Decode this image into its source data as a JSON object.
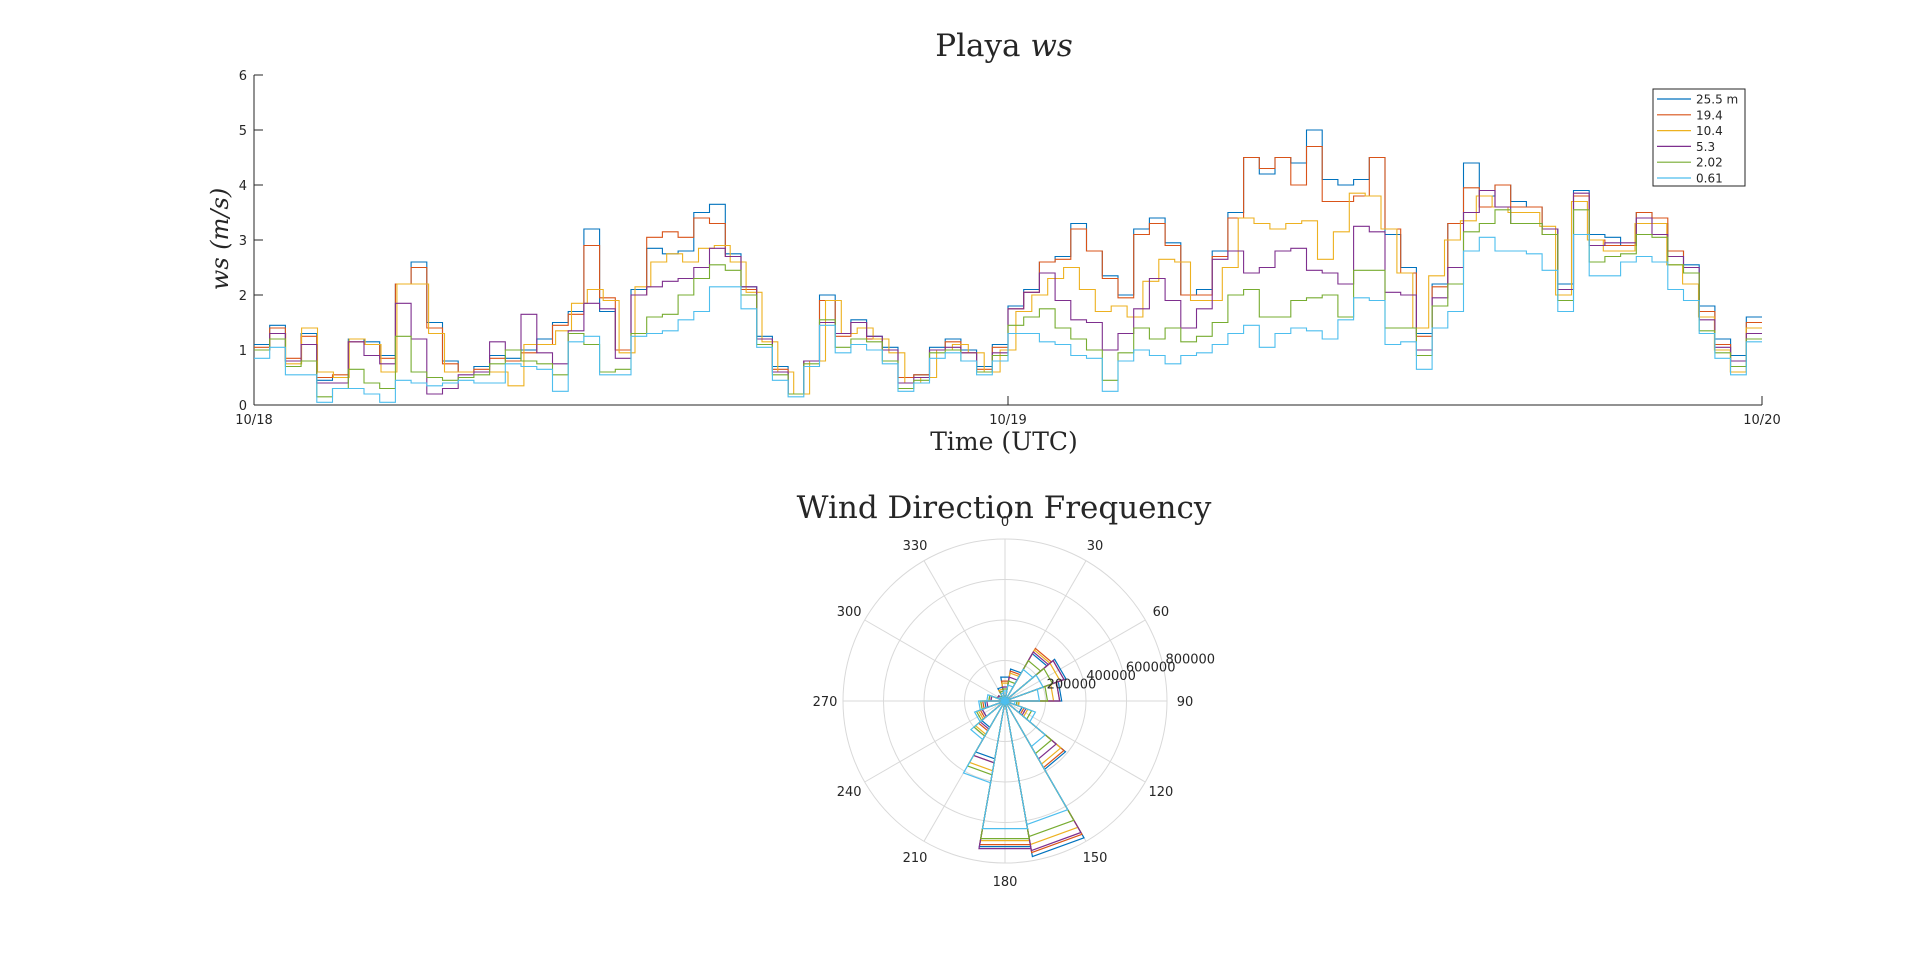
{
  "colors": {
    "s25_5": "#0072BD",
    "s19_4": "#D95319",
    "s10_4": "#EDB120",
    "s5_3": "#7E2F8E",
    "s2_02": "#77AC30",
    "s0_61": "#4DBEEE",
    "axis": "#262626",
    "polar_grid": "#d9d9d9"
  },
  "chart_data": [
    {
      "type": "line",
      "style": "stairs",
      "title_prefix": "Playa ",
      "title_italic": "ws",
      "ylabel": "ws (m/s)",
      "xlabel": "Time (UTC)",
      "xlim": [
        0,
        48
      ],
      "ylim": [
        0,
        6
      ],
      "yticks": [
        "0",
        "1",
        "2",
        "3",
        "4",
        "5",
        "6"
      ],
      "xticks": [
        {
          "x": 0,
          "label": "10/18"
        },
        {
          "x": 24,
          "label": "10/19"
        },
        {
          "x": 48,
          "label": "10/20"
        }
      ],
      "legend_position": "top-right",
      "grid": false,
      "series": [
        {
          "name": "25.5 m",
          "color_key": "s25_5",
          "values": [
            1.1,
            1.45,
            0.8,
            1.3,
            0.45,
            0.5,
            1.2,
            1.15,
            0.9,
            2.2,
            2.6,
            1.5,
            0.8,
            0.6,
            0.7,
            0.9,
            0.85,
            1.0,
            1.2,
            1.5,
            1.7,
            3.2,
            1.7,
            1.0,
            2.1,
            2.85,
            2.75,
            2.8,
            3.5,
            3.65,
            2.75,
            2.15,
            1.25,
            0.7,
            0.2,
            0.8,
            2.0,
            1.3,
            1.55,
            1.25,
            1.05,
            0.5,
            0.55,
            1.05,
            1.2,
            1.0,
            0.7,
            1.1,
            1.8,
            2.1,
            2.6,
            2.7,
            3.3,
            2.8,
            2.35,
            2.0,
            3.2,
            3.4,
            2.95,
            2.0,
            2.1,
            2.8,
            3.5,
            4.5,
            4.2,
            4.5,
            4.4,
            5.0,
            4.1,
            4.0,
            4.1,
            4.5,
            3.1,
            2.5,
            1.3,
            2.2,
            3.3,
            4.4,
            3.8,
            4.0,
            3.7,
            3.6,
            3.2,
            2.2,
            3.9,
            3.1,
            3.05,
            2.9,
            3.5,
            3.3,
            2.8,
            2.55,
            1.8,
            1.2,
            0.9,
            1.6
          ]
        },
        {
          "name": "19.4",
          "color_key": "s19_4",
          "values": [
            1.05,
            1.4,
            0.85,
            1.25,
            0.5,
            0.55,
            1.15,
            1.1,
            0.85,
            2.2,
            2.5,
            1.4,
            0.75,
            0.6,
            0.65,
            0.85,
            0.8,
            0.95,
            1.1,
            1.45,
            1.65,
            2.9,
            1.95,
            1.0,
            2.0,
            3.05,
            3.15,
            3.05,
            3.4,
            3.3,
            2.7,
            2.1,
            1.2,
            0.65,
            0.2,
            0.8,
            1.9,
            1.25,
            1.5,
            1.2,
            1.0,
            0.5,
            0.55,
            1.0,
            1.15,
            0.95,
            0.65,
            1.05,
            1.75,
            2.05,
            2.6,
            2.65,
            3.2,
            2.8,
            2.3,
            1.95,
            3.1,
            3.3,
            2.9,
            2.0,
            2.0,
            2.7,
            3.4,
            4.5,
            4.3,
            4.5,
            4.0,
            4.7,
            3.7,
            3.7,
            3.8,
            4.5,
            3.2,
            2.4,
            1.25,
            2.15,
            3.3,
            3.95,
            3.6,
            4.0,
            3.6,
            3.6,
            3.1,
            2.1,
            3.8,
            3.0,
            2.9,
            2.9,
            3.5,
            3.4,
            2.8,
            2.4,
            1.7,
            1.1,
            0.8,
            1.5
          ]
        },
        {
          "name": "10.4",
          "color_key": "s10_4",
          "values": [
            1.0,
            1.3,
            0.75,
            1.4,
            0.6,
            0.5,
            1.2,
            1.1,
            0.6,
            2.2,
            2.2,
            1.3,
            0.6,
            0.6,
            0.6,
            0.6,
            0.35,
            1.1,
            1.1,
            1.35,
            1.85,
            2.1,
            1.9,
            0.95,
            2.15,
            2.6,
            2.75,
            2.6,
            2.85,
            2.9,
            2.6,
            2.05,
            1.15,
            0.6,
            0.2,
            0.8,
            1.9,
            1.3,
            1.4,
            1.2,
            0.95,
            0.4,
            0.5,
            1.0,
            1.1,
            0.95,
            0.6,
            1.0,
            1.7,
            2.0,
            2.3,
            2.5,
            2.1,
            1.7,
            1.8,
            1.6,
            2.25,
            2.65,
            2.6,
            1.9,
            1.9,
            2.5,
            3.4,
            3.3,
            3.2,
            3.3,
            3.35,
            2.65,
            3.15,
            3.85,
            3.8,
            3.2,
            2.4,
            1.4,
            2.35,
            3.0,
            3.35,
            3.8,
            3.6,
            3.5,
            3.5,
            3.25,
            2.0,
            3.7,
            3.0,
            2.8,
            2.8,
            3.3,
            3.3,
            2.55,
            2.2,
            1.6,
            1.0,
            0.6,
            1.4
          ]
        },
        {
          "name": "5.3",
          "color_key": "s5_3",
          "values": [
            1.0,
            1.3,
            0.8,
            1.1,
            0.4,
            0.4,
            1.15,
            0.9,
            0.75,
            1.85,
            1.2,
            0.2,
            0.3,
            0.55,
            0.6,
            1.15,
            1.0,
            1.65,
            0.95,
            0.75,
            1.35,
            1.85,
            1.75,
            0.85,
            2.0,
            2.15,
            2.25,
            2.3,
            2.5,
            2.85,
            2.7,
            2.15,
            1.2,
            0.6,
            0.2,
            0.8,
            1.5,
            1.3,
            1.5,
            1.25,
            1.0,
            0.4,
            0.5,
            1.0,
            1.05,
            0.95,
            0.6,
            0.95,
            1.75,
            2.05,
            2.4,
            1.9,
            1.55,
            1.5,
            1.0,
            1.3,
            1.75,
            2.3,
            1.9,
            1.4,
            1.75,
            2.65,
            2.8,
            2.4,
            2.5,
            2.8,
            2.85,
            2.45,
            2.4,
            2.2,
            3.25,
            3.15,
            2.05,
            2.0,
            1.0,
            1.95,
            2.5,
            3.5,
            3.9,
            3.6,
            3.3,
            3.3,
            3.2,
            2.1,
            3.85,
            2.9,
            2.95,
            2.95,
            3.4,
            3.1,
            2.7,
            2.5,
            1.55,
            1.05,
            0.8,
            1.3
          ]
        },
        {
          "name": "2.02",
          "color_key": "s2_02",
          "values": [
            1.0,
            1.2,
            0.7,
            0.8,
            0.15,
            0.3,
            0.65,
            0.4,
            0.3,
            1.25,
            0.6,
            0.5,
            0.45,
            0.5,
            0.55,
            0.75,
            1.0,
            0.8,
            0.75,
            0.55,
            1.3,
            1.1,
            0.6,
            0.65,
            1.3,
            1.6,
            1.65,
            2.0,
            2.3,
            2.55,
            2.45,
            2.0,
            1.1,
            0.55,
            0.2,
            0.75,
            1.55,
            1.05,
            1.2,
            1.15,
            0.8,
            0.3,
            0.45,
            0.95,
            1.0,
            0.8,
            0.6,
            0.9,
            1.45,
            1.6,
            1.75,
            1.4,
            1.2,
            1.0,
            0.45,
            0.95,
            1.4,
            1.2,
            1.4,
            1.15,
            1.25,
            1.5,
            2.0,
            2.1,
            1.6,
            1.6,
            1.9,
            1.95,
            2.0,
            1.6,
            2.45,
            2.45,
            1.4,
            1.4,
            0.9,
            1.8,
            2.2,
            3.15,
            3.3,
            3.55,
            3.3,
            3.3,
            3.1,
            1.9,
            3.55,
            2.6,
            2.7,
            2.75,
            3.1,
            3.05,
            2.55,
            2.4,
            1.35,
            0.95,
            0.7,
            1.2
          ]
        },
        {
          "name": "0.61",
          "color_key": "s0_61",
          "values": [
            0.85,
            1.05,
            0.55,
            0.55,
            0.05,
            0.3,
            0.3,
            0.2,
            0.05,
            0.45,
            0.4,
            0.35,
            0.4,
            0.45,
            0.4,
            0.4,
            0.75,
            0.7,
            0.65,
            0.25,
            1.15,
            1.25,
            0.55,
            0.55,
            1.25,
            1.3,
            1.35,
            1.55,
            1.7,
            2.15,
            2.15,
            1.75,
            1.05,
            0.45,
            0.15,
            0.7,
            1.45,
            0.95,
            1.1,
            1.0,
            0.75,
            0.25,
            0.4,
            0.85,
            0.95,
            0.8,
            0.55,
            0.8,
            1.3,
            1.3,
            1.15,
            1.1,
            0.9,
            0.85,
            0.25,
            0.8,
            1.0,
            0.9,
            0.75,
            0.9,
            0.95,
            1.1,
            1.3,
            1.45,
            1.05,
            1.3,
            1.4,
            1.35,
            1.2,
            1.55,
            1.95,
            1.9,
            1.1,
            1.15,
            0.65,
            1.4,
            1.7,
            2.8,
            3.05,
            2.8,
            2.8,
            2.75,
            2.45,
            1.7,
            3.1,
            2.35,
            2.35,
            2.6,
            2.7,
            2.6,
            2.1,
            1.9,
            1.3,
            0.85,
            0.55,
            1.15
          ]
        }
      ]
    },
    {
      "type": "polar_histogram",
      "title": "Wind Direction Frequency",
      "angle_zero": "north",
      "angle_direction": "clockwise",
      "rmax": 800000,
      "rticks": [
        {
          "value": 200000,
          "label": "200000"
        },
        {
          "value": 400000,
          "label": "400000"
        },
        {
          "value": 600000,
          "label": "600000"
        },
        {
          "value": 800000,
          "label": "800000"
        }
      ],
      "theta_ticks": [
        {
          "angle": 0,
          "label": "0"
        },
        {
          "angle": 30,
          "label": "30"
        },
        {
          "angle": 60,
          "label": "60"
        },
        {
          "angle": 90,
          "label": "90"
        },
        {
          "angle": 120,
          "label": "120"
        },
        {
          "angle": 150,
          "label": "150"
        },
        {
          "angle": 180,
          "label": "180"
        },
        {
          "angle": 210,
          "label": "210"
        },
        {
          "angle": 240,
          "label": "240"
        },
        {
          "angle": 270,
          "label": "270"
        },
        {
          "angle": 300,
          "label": "300"
        },
        {
          "angle": 330,
          "label": "330"
        }
      ],
      "bin_width_deg": 20,
      "bin_centers": [
        0,
        20,
        40,
        60,
        80,
        100,
        120,
        140,
        160,
        180,
        200,
        220,
        240,
        260,
        280,
        300,
        320,
        340
      ],
      "series": [
        {
          "name": "25.5 m",
          "color_key": "s25_5",
          "values": [
            120000,
            160000,
            270000,
            320000,
            280000,
            70000,
            90000,
            390000,
            780000,
            730000,
            290000,
            150000,
            120000,
            100000,
            70000,
            40000,
            30000,
            70000
          ]
        },
        {
          "name": "19.4",
          "color_key": "s19_4",
          "values": [
            100000,
            150000,
            300000,
            310000,
            270000,
            70000,
            100000,
            380000,
            760000,
            720000,
            310000,
            170000,
            130000,
            110000,
            70000,
            40000,
            30000,
            60000
          ]
        },
        {
          "name": "10.4",
          "color_key": "s10_4",
          "values": [
            90000,
            140000,
            290000,
            290000,
            240000,
            70000,
            120000,
            360000,
            720000,
            700000,
            350000,
            190000,
            140000,
            120000,
            80000,
            40000,
            30000,
            60000
          ]
        },
        {
          "name": "5.3",
          "color_key": "s5_3",
          "values": [
            70000,
            120000,
            280000,
            310000,
            270000,
            60000,
            110000,
            330000,
            750000,
            740000,
            310000,
            160000,
            120000,
            90000,
            70000,
            40000,
            30000,
            50000
          ]
        },
        {
          "name": "2.02",
          "color_key": "s2_02",
          "values": [
            60000,
            100000,
            230000,
            250000,
            210000,
            60000,
            140000,
            300000,
            680000,
            690000,
            370000,
            200000,
            150000,
            120000,
            80000,
            30000,
            30000,
            50000
          ]
        },
        {
          "name": "0.61",
          "color_key": "s0_61",
          "values": [
            50000,
            80000,
            180000,
            200000,
            170000,
            50000,
            160000,
            260000,
            620000,
            640000,
            410000,
            220000,
            160000,
            130000,
            90000,
            30000,
            20000,
            40000
          ]
        }
      ]
    }
  ]
}
